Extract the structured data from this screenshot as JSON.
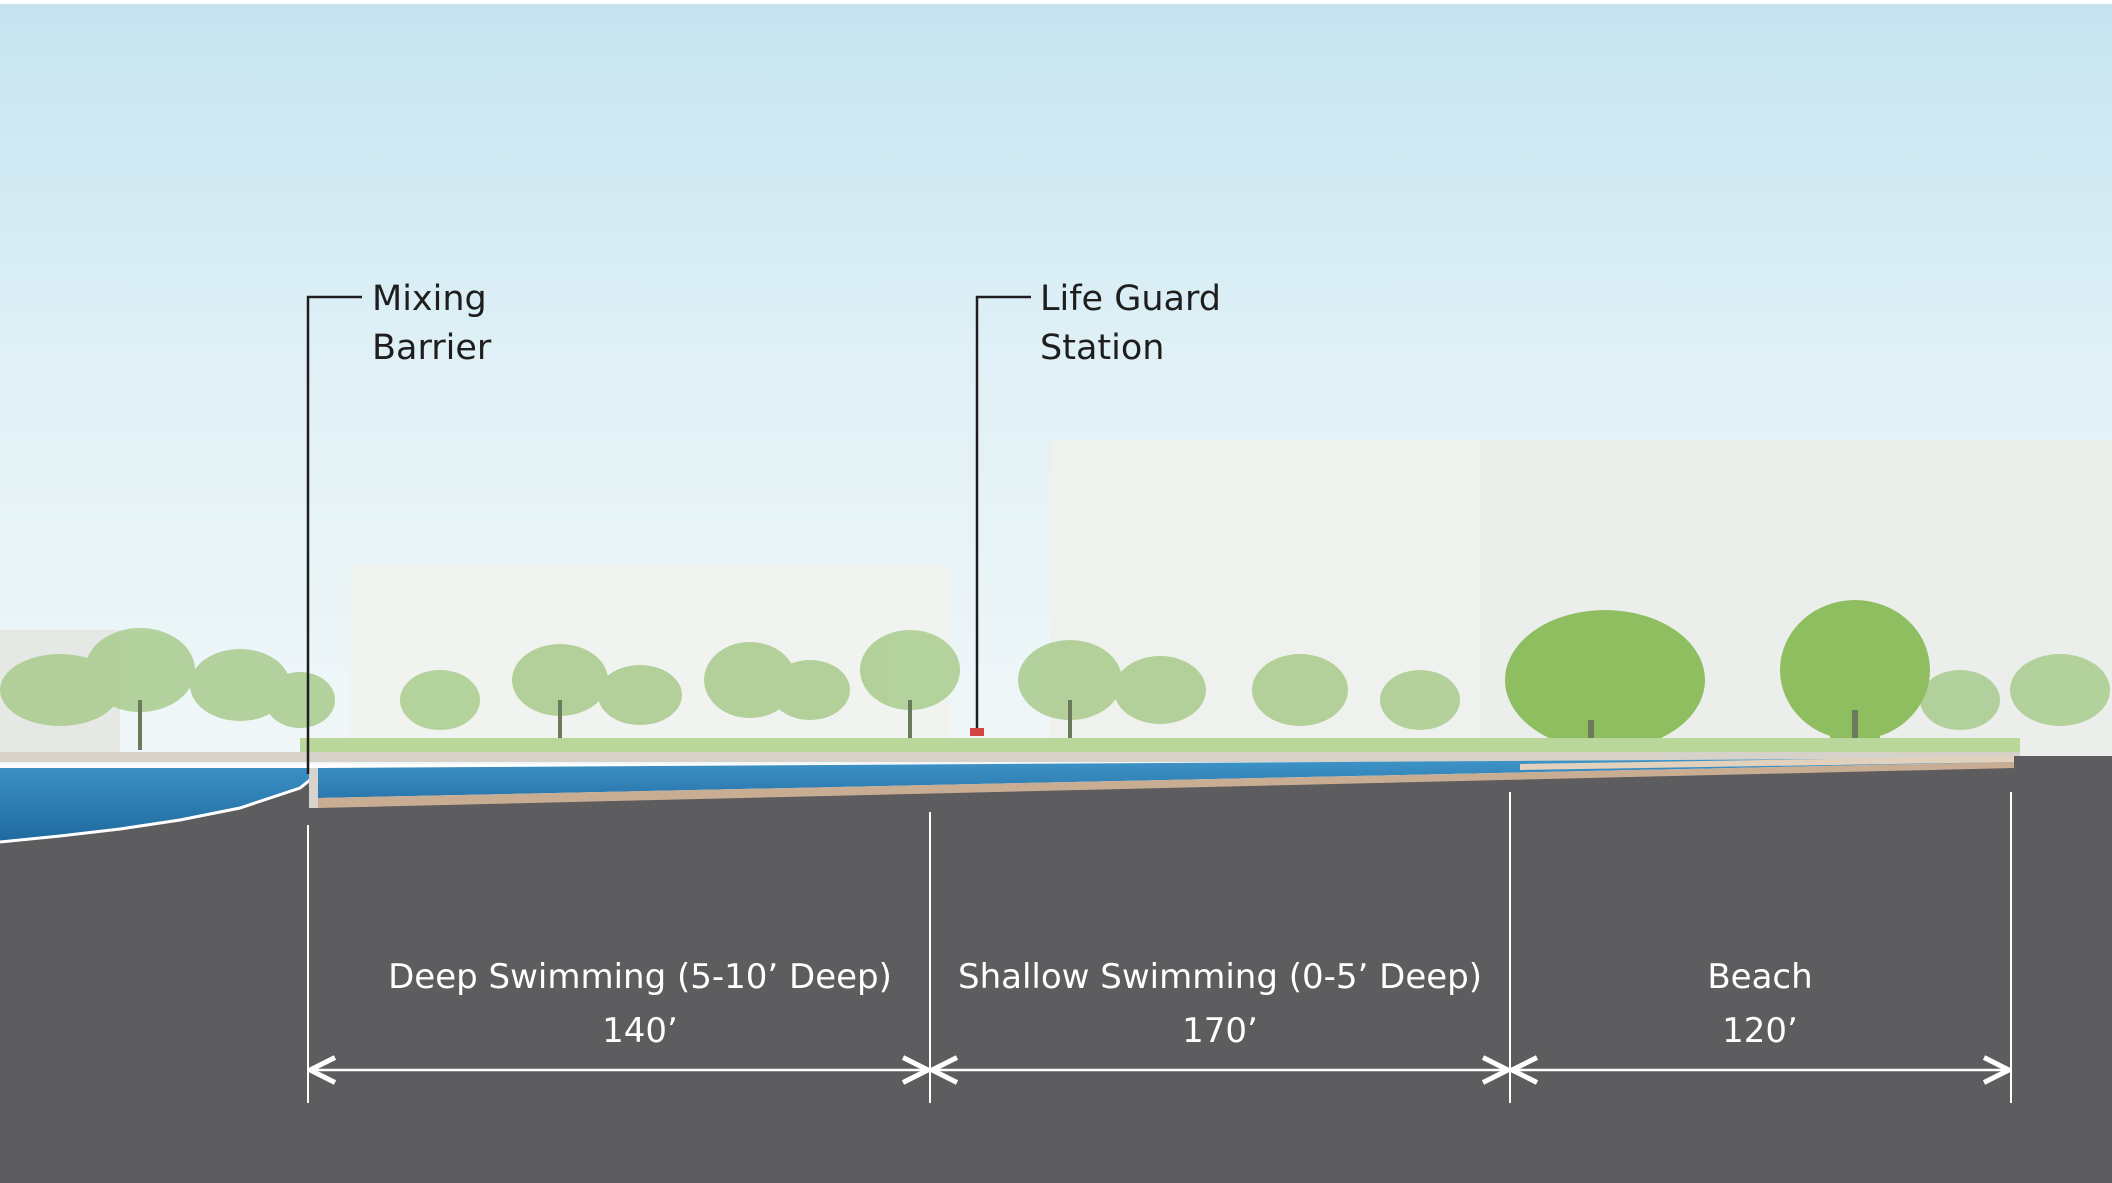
{
  "callouts": [
    {
      "line1": "Mixing",
      "line2": "Barrier"
    },
    {
      "line1": "Life Guard",
      "line2": "Station"
    }
  ],
  "zones": [
    {
      "title": "Deep Swimming (5-10’ Deep)",
      "dim": "140’"
    },
    {
      "title": "Shallow Swimming (0-5’ Deep)",
      "dim": "170’"
    },
    {
      "title": "Beach",
      "dim": "120’"
    }
  ],
  "colors": {
    "ground": "#5d5d5f",
    "water": "#2f7fb5",
    "pool_edge": "#c9ad93",
    "sky_top": "#c6e4f0",
    "tree": "#9cc47a",
    "callout_line": "#1e1e1e",
    "dimension_line": "#ffffff"
  }
}
